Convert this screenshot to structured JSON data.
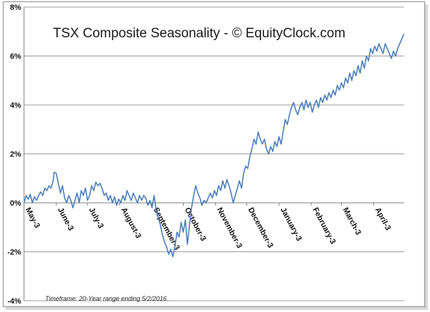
{
  "chart_data": {
    "type": "line",
    "title": "TSX Composite Seasonality - © EquityClock.com",
    "footnote": "Timeframe: 20-Year range ending 5/2/2016",
    "ylim": [
      -4,
      8
    ],
    "yticks": [
      -4,
      -2,
      0,
      2,
      4,
      6,
      8
    ],
    "ytick_labels": [
      "-4%",
      "-2%",
      "0%",
      "2%",
      "4%",
      "6%",
      "8%"
    ],
    "xticks": [
      {
        "label": "May-3",
        "day": 0
      },
      {
        "label": "June-3",
        "day": 31
      },
      {
        "label": "July-3",
        "day": 61
      },
      {
        "label": "August-3",
        "day": 92
      },
      {
        "label": "September-3",
        "day": 123
      },
      {
        "label": "October-3",
        "day": 153
      },
      {
        "label": "November-3",
        "day": 184
      },
      {
        "label": "December-3",
        "day": 214
      },
      {
        "label": "January-3",
        "day": 245
      },
      {
        "label": "February-3",
        "day": 276
      },
      {
        "label": "March-3",
        "day": 305
      },
      {
        "label": "April-3",
        "day": 336
      }
    ],
    "x_max": 365,
    "grid": "horizontal",
    "line_color": "#4a7ebb",
    "series": [
      {
        "name": "TSX Composite",
        "points": [
          [
            0,
            0.0
          ],
          [
            2,
            0.3
          ],
          [
            4,
            0.15
          ],
          [
            6,
            0.35
          ],
          [
            8,
            0.0
          ],
          [
            10,
            0.25
          ],
          [
            12,
            0.1
          ],
          [
            14,
            0.3
          ],
          [
            16,
            0.45
          ],
          [
            18,
            0.3
          ],
          [
            20,
            0.6
          ],
          [
            22,
            0.5
          ],
          [
            24,
            0.7
          ],
          [
            26,
            0.6
          ],
          [
            28,
            0.9
          ],
          [
            29,
            1.25
          ],
          [
            31,
            1.2
          ],
          [
            33,
            0.8
          ],
          [
            35,
            0.4
          ],
          [
            37,
            0.7
          ],
          [
            39,
            0.2
          ],
          [
            41,
            0.0
          ],
          [
            43,
            0.3
          ],
          [
            45,
            0.1
          ],
          [
            47,
            -0.2
          ],
          [
            49,
            0.1
          ],
          [
            51,
            0.4
          ],
          [
            53,
            0.0
          ],
          [
            55,
            0.5
          ],
          [
            57,
            0.3
          ],
          [
            59,
            0.6
          ],
          [
            61,
            0.1
          ],
          [
            63,
            0.3
          ],
          [
            65,
            0.7
          ],
          [
            67,
            0.5
          ],
          [
            69,
            0.85
          ],
          [
            71,
            0.7
          ],
          [
            73,
            0.8
          ],
          [
            75,
            0.6
          ],
          [
            77,
            0.3
          ],
          [
            79,
            0.4
          ],
          [
            81,
            0.1
          ],
          [
            83,
            0.3
          ],
          [
            85,
            0.0
          ],
          [
            87,
            0.25
          ],
          [
            89,
            -0.1
          ],
          [
            91,
            0.15
          ],
          [
            93,
            0.0
          ],
          [
            95,
            0.3
          ],
          [
            97,
            0.1
          ],
          [
            99,
            0.5
          ],
          [
            101,
            0.3
          ],
          [
            103,
            0.1
          ],
          [
            105,
            0.4
          ],
          [
            107,
            0.2
          ],
          [
            109,
            0.0
          ],
          [
            111,
            0.3
          ],
          [
            113,
            0.1
          ],
          [
            115,
            0.3
          ],
          [
            117,
            0.2
          ],
          [
            119,
            -0.1
          ],
          [
            121,
            0.1
          ],
          [
            123,
            -0.2
          ],
          [
            125,
            0.3
          ],
          [
            127,
            -0.3
          ],
          [
            129,
            -0.6
          ],
          [
            131,
            -0.9
          ],
          [
            133,
            -1.3
          ],
          [
            135,
            -1.6
          ],
          [
            137,
            -1.8
          ],
          [
            139,
            -2.1
          ],
          [
            141,
            -1.9
          ],
          [
            143,
            -2.2
          ],
          [
            145,
            -1.8
          ],
          [
            147,
            -1.2
          ],
          [
            149,
            -1.4
          ],
          [
            151,
            -0.8
          ],
          [
            153,
            -1.2
          ],
          [
            155,
            -0.7
          ],
          [
            157,
            -1.7
          ],
          [
            159,
            -0.9
          ],
          [
            161,
            -0.2
          ],
          [
            163,
            0.3
          ],
          [
            165,
            0.7
          ],
          [
            167,
            0.4
          ],
          [
            169,
            0.2
          ],
          [
            171,
            -0.1
          ],
          [
            173,
            0.1
          ],
          [
            175,
            0.0
          ],
          [
            177,
            0.2
          ],
          [
            179,
            0.4
          ],
          [
            181,
            0.2
          ],
          [
            183,
            0.5
          ],
          [
            185,
            0.3
          ],
          [
            187,
            0.7
          ],
          [
            189,
            0.5
          ],
          [
            191,
            0.9
          ],
          [
            193,
            0.6
          ],
          [
            195,
            0.95
          ],
          [
            197,
            0.7
          ],
          [
            199,
            0.4
          ],
          [
            201,
            0.0
          ],
          [
            203,
            0.3
          ],
          [
            205,
            0.6
          ],
          [
            207,
            0.9
          ],
          [
            209,
            0.6
          ],
          [
            211,
            1.2
          ],
          [
            213,
            1.5
          ],
          [
            215,
            1.4
          ],
          [
            217,
            1.9
          ],
          [
            219,
            2.2
          ],
          [
            221,
            2.6
          ],
          [
            223,
            2.4
          ],
          [
            225,
            2.9
          ],
          [
            227,
            2.6
          ],
          [
            229,
            2.4
          ],
          [
            231,
            2.6
          ],
          [
            233,
            2.2
          ],
          [
            235,
            2.0
          ],
          [
            237,
            2.3
          ],
          [
            239,
            2.1
          ],
          [
            241,
            2.5
          ],
          [
            243,
            2.3
          ],
          [
            245,
            2.7
          ],
          [
            247,
            2.4
          ],
          [
            249,
            2.9
          ],
          [
            251,
            3.4
          ],
          [
            253,
            3.2
          ],
          [
            255,
            3.6
          ],
          [
            257,
            3.9
          ],
          [
            259,
            4.1
          ],
          [
            261,
            3.8
          ],
          [
            263,
            3.6
          ],
          [
            265,
            3.9
          ],
          [
            267,
            4.1
          ],
          [
            269,
            3.8
          ],
          [
            271,
            4.2
          ],
          [
            273,
            3.9
          ],
          [
            275,
            4.1
          ],
          [
            277,
            3.7
          ],
          [
            279,
            4.0
          ],
          [
            281,
            4.2
          ],
          [
            283,
            3.9
          ],
          [
            285,
            4.3
          ],
          [
            287,
            4.1
          ],
          [
            289,
            4.4
          ],
          [
            291,
            4.2
          ],
          [
            293,
            4.5
          ],
          [
            295,
            4.3
          ],
          [
            297,
            4.6
          ],
          [
            299,
            4.4
          ],
          [
            301,
            4.8
          ],
          [
            303,
            4.6
          ],
          [
            305,
            4.9
          ],
          [
            307,
            4.7
          ],
          [
            309,
            5.1
          ],
          [
            311,
            4.9
          ],
          [
            313,
            5.3
          ],
          [
            315,
            5.0
          ],
          [
            317,
            5.4
          ],
          [
            319,
            5.2
          ],
          [
            321,
            5.6
          ],
          [
            323,
            5.3
          ],
          [
            325,
            5.8
          ],
          [
            327,
            5.5
          ],
          [
            329,
            6.0
          ],
          [
            331,
            5.8
          ],
          [
            333,
            6.3
          ],
          [
            335,
            6.1
          ],
          [
            337,
            6.4
          ],
          [
            339,
            6.2
          ],
          [
            341,
            6.5
          ],
          [
            343,
            6.3
          ],
          [
            345,
            6.1
          ],
          [
            347,
            6.5
          ],
          [
            349,
            6.3
          ],
          [
            351,
            6.1
          ],
          [
            353,
            5.9
          ],
          [
            355,
            6.2
          ],
          [
            357,
            6.0
          ],
          [
            359,
            6.3
          ],
          [
            361,
            6.5
          ],
          [
            363,
            6.7
          ],
          [
            365,
            6.9
          ]
        ]
      }
    ]
  }
}
